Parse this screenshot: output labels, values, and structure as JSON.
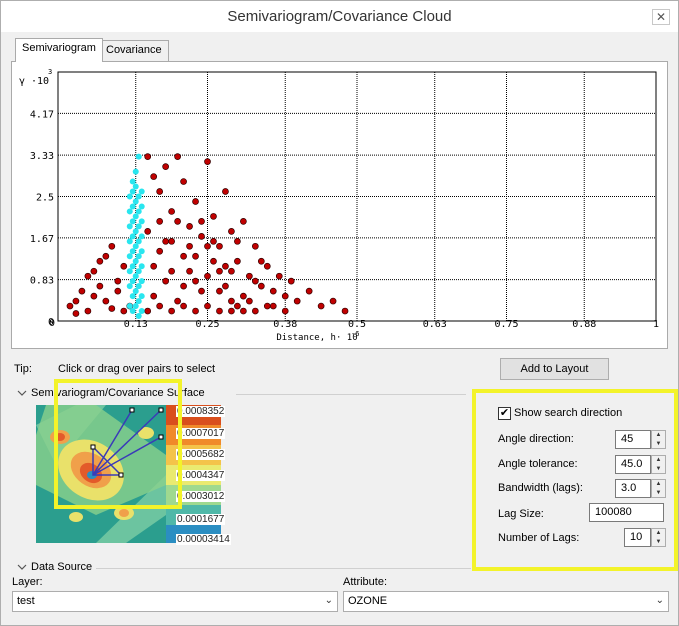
{
  "window": {
    "title": "Semivariogram/Covariance Cloud"
  },
  "tabs": [
    {
      "label": "Semivariogram"
    },
    {
      "label": "Covariance"
    }
  ],
  "chart_data": {
    "type": "scatter",
    "ylabel_symbol": "γ",
    "ylabel_exp": "·10",
    "ylabel_exp_power": "3",
    "yticks": [
      "4.17",
      "3.33",
      "2.5",
      "1.67",
      "0.83",
      "0"
    ],
    "ytick_values": [
      4.17,
      3.33,
      2.5,
      1.67,
      0.83,
      0
    ],
    "xticks": [
      "0.13",
      "0.25",
      "0.38",
      "0.5",
      "0.63",
      "0.75",
      "0.88",
      "1"
    ],
    "xtick_values": [
      0.13,
      0.25,
      0.38,
      0.5,
      0.63,
      0.75,
      0.88,
      1
    ],
    "xlabel": "Distance, h·",
    "xlabel_exp": "10",
    "xlabel_exp_power": "-6",
    "xlim": [
      0,
      1
    ],
    "ylim": [
      0,
      5
    ],
    "grid": true,
    "series": [
      {
        "color": "#c00000",
        "points": [
          [
            0.02,
            0.3
          ],
          [
            0.03,
            0.15
          ],
          [
            0.04,
            0.6
          ],
          [
            0.05,
            0.9
          ],
          [
            0.06,
            0.5
          ],
          [
            0.07,
            1.2
          ],
          [
            0.08,
            0.4
          ],
          [
            0.09,
            1.5
          ],
          [
            0.1,
            0.8
          ],
          [
            0.11,
            1.1
          ],
          [
            0.12,
            0.3
          ],
          [
            0.15,
            3.3
          ],
          [
            0.16,
            2.9
          ],
          [
            0.17,
            2.6
          ],
          [
            0.18,
            3.1
          ],
          [
            0.19,
            2.2
          ],
          [
            0.2,
            3.3
          ],
          [
            0.21,
            2.8
          ],
          [
            0.22,
            1.9
          ],
          [
            0.23,
            2.4
          ],
          [
            0.24,
            1.7
          ],
          [
            0.25,
            3.2
          ],
          [
            0.26,
            2.1
          ],
          [
            0.27,
            1.5
          ],
          [
            0.28,
            2.6
          ],
          [
            0.29,
            1.8
          ],
          [
            0.3,
            1.2
          ],
          [
            0.31,
            2.0
          ],
          [
            0.32,
            0.9
          ],
          [
            0.33,
            1.5
          ],
          [
            0.34,
            0.7
          ],
          [
            0.35,
            1.1
          ],
          [
            0.36,
            0.6
          ],
          [
            0.37,
            0.9
          ],
          [
            0.38,
            0.5
          ],
          [
            0.39,
            0.8
          ],
          [
            0.4,
            0.4
          ],
          [
            0.42,
            0.6
          ],
          [
            0.44,
            0.3
          ],
          [
            0.46,
            0.4
          ],
          [
            0.48,
            0.2
          ],
          [
            0.17,
            1.4
          ],
          [
            0.19,
            1.0
          ],
          [
            0.21,
            0.7
          ],
          [
            0.23,
            1.3
          ],
          [
            0.25,
            0.9
          ],
          [
            0.27,
            0.6
          ],
          [
            0.29,
            1.0
          ],
          [
            0.31,
            0.5
          ],
          [
            0.33,
            0.8
          ],
          [
            0.16,
            0.5
          ],
          [
            0.18,
            0.8
          ],
          [
            0.2,
            0.4
          ],
          [
            0.22,
            1.0
          ],
          [
            0.24,
            0.6
          ],
          [
            0.26,
            1.2
          ],
          [
            0.28,
            0.7
          ],
          [
            0.3,
            0.3
          ],
          [
            0.32,
            0.4
          ],
          [
            0.15,
            1.8
          ],
          [
            0.17,
            2.0
          ],
          [
            0.19,
            1.6
          ],
          [
            0.21,
            1.3
          ],
          [
            0.23,
            0.8
          ],
          [
            0.25,
            1.5
          ],
          [
            0.27,
            1.0
          ],
          [
            0.29,
            0.4
          ],
          [
            0.06,
            1.0
          ],
          [
            0.08,
            1.3
          ],
          [
            0.1,
            0.6
          ],
          [
            0.11,
            0.2
          ],
          [
            0.03,
            0.4
          ],
          [
            0.05,
            0.2
          ],
          [
            0.07,
            0.7
          ],
          [
            0.09,
            0.25
          ],
          [
            0.16,
            1.1
          ],
          [
            0.18,
            1.6
          ],
          [
            0.2,
            2.0
          ],
          [
            0.22,
            1.5
          ],
          [
            0.24,
            2.0
          ],
          [
            0.26,
            1.6
          ],
          [
            0.28,
            1.1
          ],
          [
            0.3,
            1.6
          ],
          [
            0.34,
            1.2
          ],
          [
            0.36,
            0.3
          ],
          [
            0.38,
            0.2
          ],
          [
            0.15,
            0.2
          ],
          [
            0.17,
            0.3
          ],
          [
            0.19,
            0.2
          ],
          [
            0.21,
            0.3
          ],
          [
            0.23,
            0.2
          ],
          [
            0.25,
            0.3
          ],
          [
            0.27,
            0.2
          ],
          [
            0.29,
            0.2
          ],
          [
            0.31,
            0.2
          ],
          [
            0.33,
            0.2
          ],
          [
            0.35,
            0.3
          ]
        ]
      },
      {
        "color": "#29e6ef",
        "points": [
          [
            0.125,
            0.2
          ],
          [
            0.125,
            0.5
          ],
          [
            0.125,
            0.8
          ],
          [
            0.125,
            1.1
          ],
          [
            0.125,
            1.4
          ],
          [
            0.125,
            1.7
          ],
          [
            0.125,
            2.0
          ],
          [
            0.125,
            2.3
          ],
          [
            0.125,
            2.6
          ],
          [
            0.125,
            2.8
          ],
          [
            0.13,
            0.3
          ],
          [
            0.13,
            0.6
          ],
          [
            0.13,
            0.9
          ],
          [
            0.13,
            1.2
          ],
          [
            0.13,
            1.5
          ],
          [
            0.13,
            1.8
          ],
          [
            0.13,
            2.1
          ],
          [
            0.13,
            2.4
          ],
          [
            0.13,
            2.7
          ],
          [
            0.13,
            3.0
          ],
          [
            0.135,
            0.1
          ],
          [
            0.135,
            0.4
          ],
          [
            0.135,
            0.7
          ],
          [
            0.135,
            1.0
          ],
          [
            0.135,
            1.3
          ],
          [
            0.135,
            1.6
          ],
          [
            0.135,
            1.9
          ],
          [
            0.135,
            2.2
          ],
          [
            0.135,
            2.5
          ],
          [
            0.135,
            3.3
          ],
          [
            0.14,
            0.2
          ],
          [
            0.14,
            0.5
          ],
          [
            0.14,
            0.8
          ],
          [
            0.14,
            1.1
          ],
          [
            0.14,
            1.4
          ],
          [
            0.14,
            1.7
          ],
          [
            0.14,
            2.0
          ],
          [
            0.14,
            2.3
          ],
          [
            0.14,
            2.6
          ],
          [
            0.12,
            0.3
          ],
          [
            0.12,
            0.7
          ],
          [
            0.12,
            1.0
          ],
          [
            0.12,
            1.3
          ],
          [
            0.12,
            1.6
          ],
          [
            0.12,
            1.9
          ],
          [
            0.12,
            2.2
          ],
          [
            0.12,
            2.5
          ]
        ]
      }
    ]
  },
  "tip": {
    "label": "Tip:",
    "text": "Click or drag over pairs to select"
  },
  "buttons": {
    "add_to_layout": "Add to Layout"
  },
  "surface_section": {
    "title": "Semivariogram/Covariance Surface",
    "legend": [
      "0.0008352",
      "0.0007017",
      "0.0005682",
      "0.0004347",
      "0.0003012",
      "0.0001677",
      "0.00003414"
    ]
  },
  "search": {
    "show_direction_label": "Show search direction",
    "show_direction_checked": "✔",
    "angle_direction_label": "Angle direction:",
    "angle_direction_value": "45",
    "angle_tolerance_label": "Angle tolerance:",
    "angle_tolerance_value": "45.0",
    "bandwidth_label": "Bandwidth (lags):",
    "bandwidth_value": "3.0",
    "lag_size_label": "Lag Size:",
    "lag_size_value": "100080",
    "number_of_lags_label": "Number of Lags:",
    "number_of_lags_value": "10"
  },
  "data_source": {
    "title": "Data Source",
    "layer_label": "Layer:",
    "layer_value": "test",
    "attribute_label": "Attribute:",
    "attribute_value": "OZONE"
  },
  "colors": {
    "highlight": "#f3f32a",
    "red_points": "#c00000",
    "cyan_points": "#29e6ef"
  }
}
